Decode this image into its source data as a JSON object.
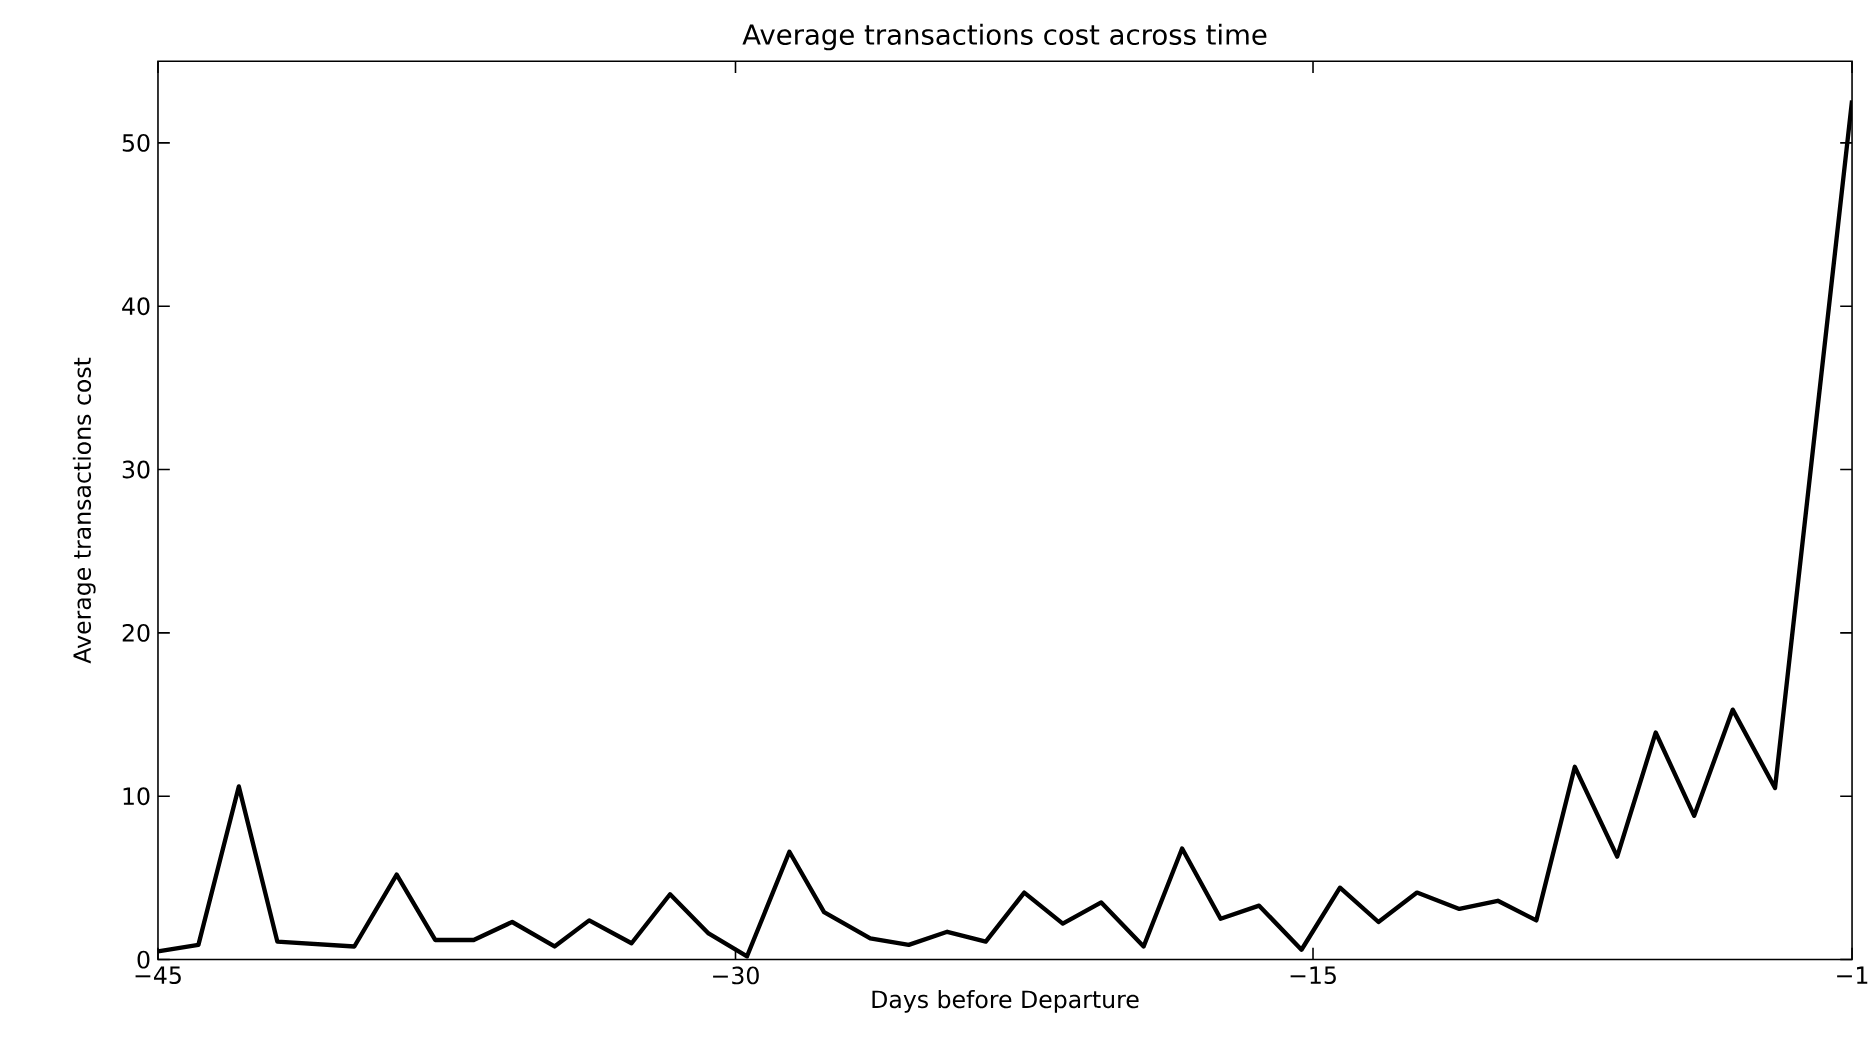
{
  "chart_data": {
    "type": "line",
    "title": "Average transactions cost across time",
    "xlabel": "Days before Departure",
    "ylabel": "Average transactions cost",
    "x": [
      -45,
      -43.95,
      -42.9,
      -41.9,
      -39.9,
      -38.8,
      -37.8,
      -36.8,
      -35.8,
      -34.7,
      -33.8,
      -32.7,
      -31.7,
      -30.7,
      -29.7,
      -28.6,
      -27.7,
      -26.5,
      -25.5,
      -24.5,
      -23.5,
      -22.5,
      -21.5,
      -20.5,
      -19.4,
      -18.4,
      -17.4,
      -16.4,
      -15.3,
      -14.3,
      -13.3,
      -12.3,
      -11.2,
      -10.2,
      -9.2,
      -8.2,
      -7.1,
      -6.1,
      -5.1,
      -4.1,
      -3.0,
      -1
    ],
    "series": [
      {
        "color": "#000000",
        "values": [
          0.5,
          0.9,
          10.6,
          1.1,
          0.8,
          5.2,
          1.2,
          1.2,
          2.3,
          0.8,
          2.4,
          1.0,
          4.0,
          1.6,
          0.2,
          6.6,
          2.9,
          1.3,
          0.9,
          1.7,
          1.1,
          4.1,
          2.2,
          3.5,
          0.8,
          6.8,
          2.5,
          3.3,
          0.6,
          4.4,
          2.3,
          4.1,
          3.1,
          3.6,
          2.4,
          11.8,
          6.3,
          13.9,
          8.8,
          15.3,
          10.5,
          52.6
        ]
      }
    ],
    "xlim": [
      -45,
      -1
    ],
    "ylim": [
      0,
      55
    ],
    "xticks": [
      {
        "value": -45,
        "label": "−45"
      },
      {
        "value": -30,
        "label": "−30"
      },
      {
        "value": -15,
        "label": "−15"
      },
      {
        "value": -1,
        "label": "−1"
      }
    ],
    "yticks": [
      0,
      10,
      20,
      30,
      40,
      50
    ],
    "grid": false,
    "marker": "none",
    "line_style": "solid"
  }
}
